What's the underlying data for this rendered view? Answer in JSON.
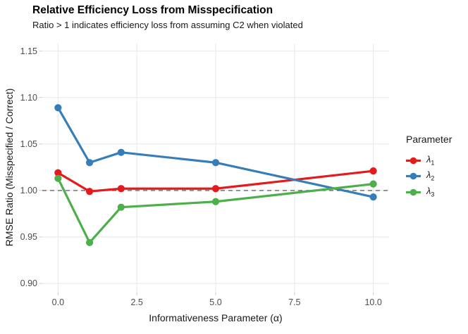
{
  "chart_data": {
    "type": "line",
    "title": "Relative Efficiency Loss from Misspecification",
    "subtitle": "Ratio > 1 indicates efficiency loss from assuming C2 when violated",
    "xlabel": "Informativeness Parameter (α)",
    "ylabel": "RMSE Ratio (Misspecified / Correct)",
    "x": [
      0,
      1,
      2,
      5,
      10
    ],
    "series": [
      {
        "name": "lambda_1",
        "label": "λ",
        "subscript": "1",
        "color": "#E41A1C",
        "values": [
          1.019,
          0.999,
          1.002,
          1.002,
          1.021
        ]
      },
      {
        "name": "lambda_2",
        "label": "λ",
        "subscript": "2",
        "color": "#377EB8",
        "values": [
          1.089,
          1.03,
          1.041,
          1.03,
          0.993
        ]
      },
      {
        "name": "lambda_3",
        "label": "λ",
        "subscript": "3",
        "color": "#4DAF4A",
        "values": [
          1.013,
          0.944,
          0.982,
          0.988,
          1.007
        ]
      }
    ],
    "x_ticks": {
      "values": [
        0,
        2.5,
        5,
        7.5,
        10
      ],
      "labels": [
        "0.0",
        "2.5",
        "5.0",
        "7.5",
        "10.0"
      ]
    },
    "y_ticks": {
      "values": [
        0.9,
        0.95,
        1.0,
        1.05,
        1.1,
        1.15
      ],
      "labels": [
        "0.90",
        "0.95",
        "1.00",
        "1.05",
        "1.10",
        "1.15"
      ]
    },
    "xlim": [
      -0.5,
      10.5
    ],
    "ylim": [
      0.891,
      1.158
    ],
    "reference_line": {
      "y": 1.0,
      "style": "dashed",
      "color": "#666666"
    },
    "legend": {
      "title": "Parameter",
      "position": "right"
    },
    "grid": {
      "which": "major",
      "color": "#EBEBEB"
    },
    "style": {
      "background": "#FFFFFF",
      "tick_mark_color": "#D4D4D4",
      "axis_text_color": "#4D4D4D",
      "line_width": 3.2,
      "point_radius": 5.1
    }
  }
}
